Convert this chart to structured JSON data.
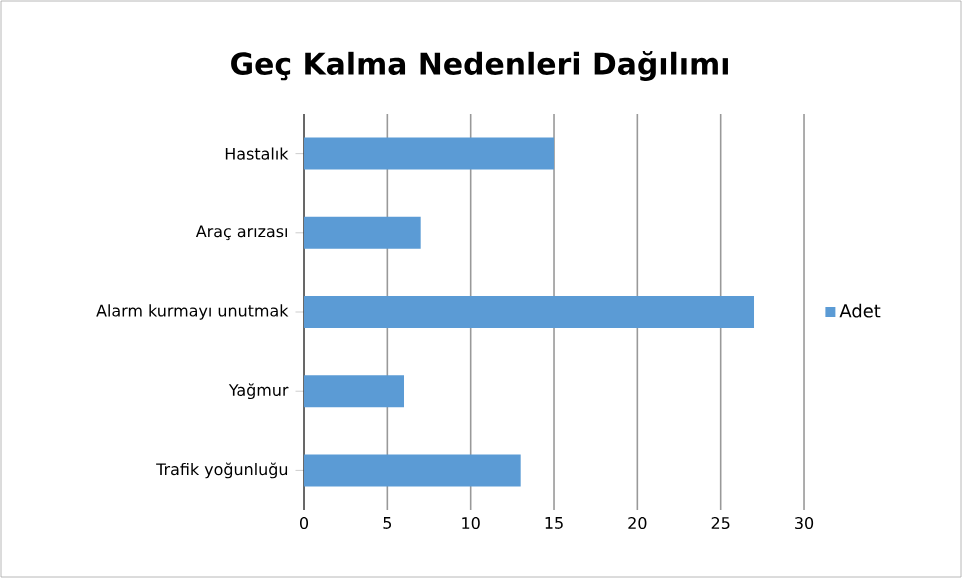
{
  "chart_data": {
    "type": "bar",
    "orientation": "horizontal",
    "title": "Geç Kalma Nedenleri Dağılımı",
    "categories": [
      "Hastalık",
      "Araç arızası",
      "Alarm kurmayı unutmak",
      "Yağmur",
      "Trafik yoğunluğu"
    ],
    "series": [
      {
        "name": "Adet",
        "color": "#5b9bd5",
        "values": [
          15,
          7,
          27,
          6,
          13
        ]
      }
    ],
    "xlim": [
      0,
      30
    ],
    "xticks": [
      0,
      5,
      10,
      15,
      20,
      25,
      30
    ],
    "grid": "x",
    "legend": "right"
  }
}
